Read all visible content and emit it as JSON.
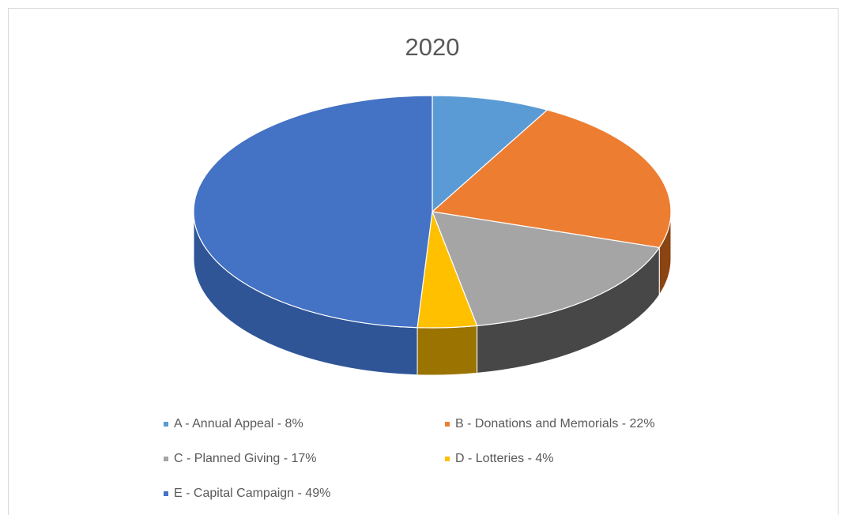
{
  "chart_data": {
    "type": "pie",
    "title": "2020",
    "categories": [
      "A - Annual Appeal - 8%",
      "B - Donations and Memorials - 22%",
      "C - Planned Giving - 17%",
      "D - Lotteries - 4%",
      "E - Capital Campaign - 49%"
    ],
    "values": [
      8,
      22,
      17,
      4,
      49
    ],
    "colors": [
      "#5b9bd5",
      "#ed7d31",
      "#a5a5a5",
      "#ffc000",
      "#4472c4"
    ],
    "side_colors": [
      "#3a6e9e",
      "#8a4513",
      "#474747",
      "#9a7300",
      "#2f5597"
    ]
  }
}
